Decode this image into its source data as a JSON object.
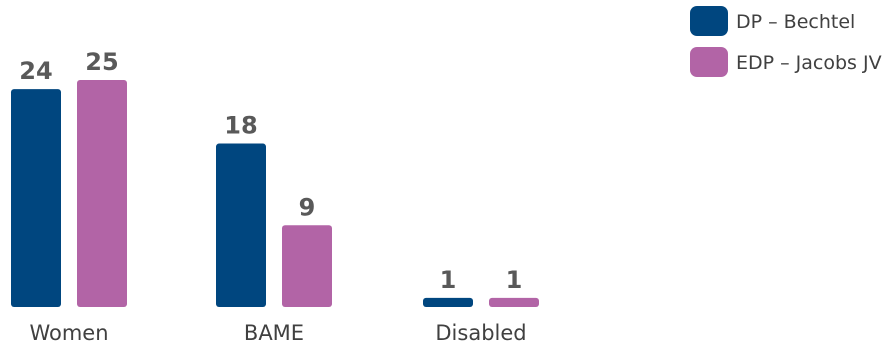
{
  "chart_data": {
    "type": "bar",
    "title": "",
    "xlabel": "",
    "ylabel": "",
    "categories": [
      "Women",
      "BAME",
      "Disabled"
    ],
    "series": [
      {
        "name": "DP – Bechtel",
        "values": [
          24,
          18,
          1
        ],
        "color": "#00467f"
      },
      {
        "name": "EDP – Jacobs JV",
        "values": [
          25,
          9,
          1
        ],
        "color": "#b264a6"
      }
    ],
    "ylim": [
      0,
      25
    ],
    "grid": false,
    "legend": "top-right",
    "data_labels": true
  }
}
